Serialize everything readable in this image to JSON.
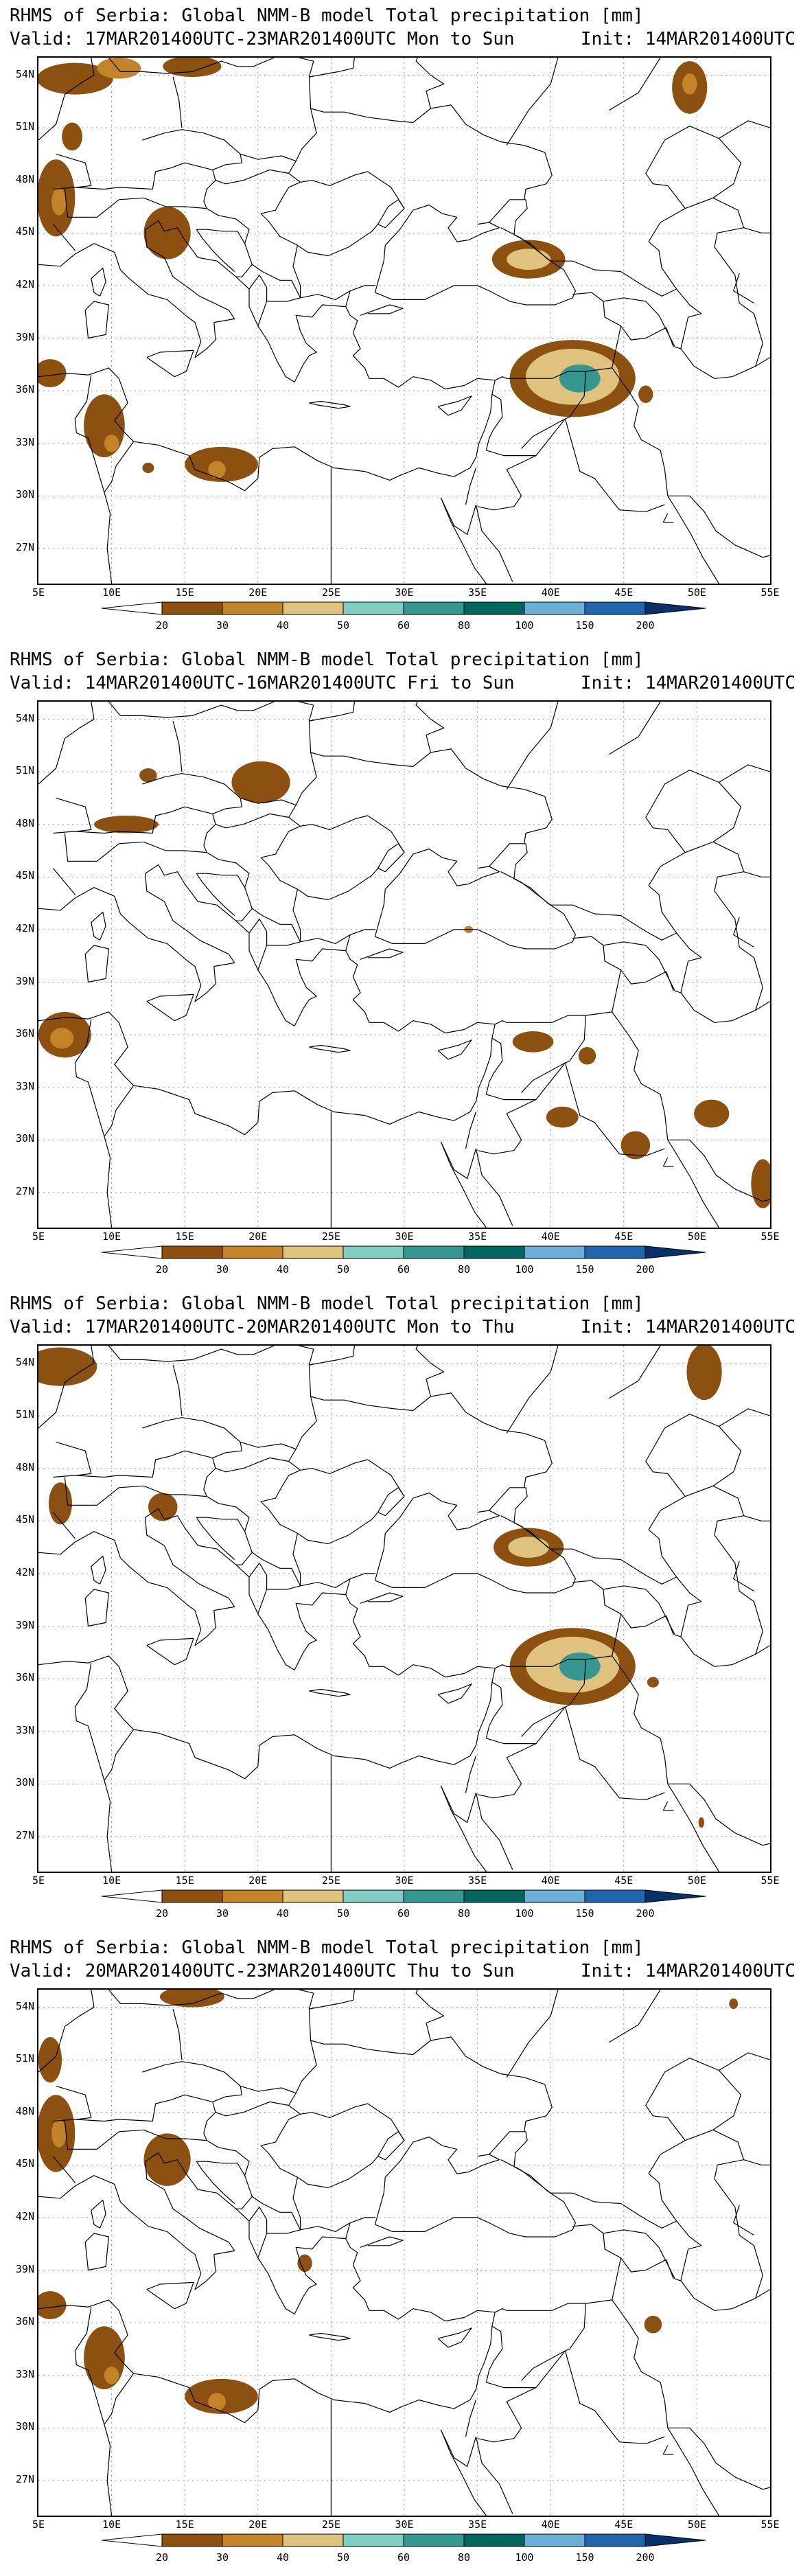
{
  "panels": [
    {
      "title": "RHMS of Serbia: Global NMM-B model Total precipitation [mm]",
      "valid": "Valid: 17MAR201400UTC-23MAR201400UTC Mon to Sun",
      "init": "Init: 14MAR201400UTC",
      "features": [
        {
          "lon": 7.5,
          "lat": 53.8,
          "rx": 2.6,
          "ry": 0.9,
          "level": 1
        },
        {
          "lon": 10.5,
          "lat": 54.4,
          "rx": 1.5,
          "ry": 0.6,
          "level": 2
        },
        {
          "lon": 15.5,
          "lat": 54.5,
          "rx": 2.0,
          "ry": 0.6,
          "level": 1
        },
        {
          "lon": 7.3,
          "lat": 50.5,
          "rx": 0.7,
          "ry": 0.8,
          "level": 1
        },
        {
          "lon": 6.2,
          "lat": 47.0,
          "rx": 1.3,
          "ry": 2.2,
          "level": 1
        },
        {
          "lon": 6.4,
          "lat": 46.8,
          "rx": 0.5,
          "ry": 0.8,
          "level": 2
        },
        {
          "lon": 13.8,
          "lat": 45.0,
          "rx": 1.6,
          "ry": 1.5,
          "level": 1
        },
        {
          "lon": 38.5,
          "lat": 43.5,
          "rx": 2.5,
          "ry": 1.1,
          "level": 1
        },
        {
          "lon": 38.5,
          "lat": 43.5,
          "rx": 1.5,
          "ry": 0.6,
          "level": 3
        },
        {
          "lon": 41.5,
          "lat": 36.7,
          "rx": 4.3,
          "ry": 2.2,
          "level": 1
        },
        {
          "lon": 41.5,
          "lat": 36.8,
          "rx": 3.2,
          "ry": 1.6,
          "level": 3
        },
        {
          "lon": 42.0,
          "lat": 36.7,
          "rx": 1.4,
          "ry": 0.8,
          "level": 5
        },
        {
          "lon": 46.5,
          "lat": 35.8,
          "rx": 0.5,
          "ry": 0.5,
          "level": 1
        },
        {
          "lon": 49.5,
          "lat": 53.3,
          "rx": 1.2,
          "ry": 1.5,
          "level": 1
        },
        {
          "lon": 49.5,
          "lat": 53.5,
          "rx": 0.5,
          "ry": 0.6,
          "level": 2
        },
        {
          "lon": 5.8,
          "lat": 37.0,
          "rx": 1.1,
          "ry": 0.8,
          "level": 1
        },
        {
          "lon": 9.5,
          "lat": 34.0,
          "rx": 1.4,
          "ry": 1.8,
          "level": 1
        },
        {
          "lon": 10.0,
          "lat": 33.0,
          "rx": 0.5,
          "ry": 0.5,
          "level": 2
        },
        {
          "lon": 17.5,
          "lat": 31.8,
          "rx": 2.5,
          "ry": 1.0,
          "level": 1
        },
        {
          "lon": 17.2,
          "lat": 31.5,
          "rx": 0.6,
          "ry": 0.5,
          "level": 2
        },
        {
          "lon": 12.5,
          "lat": 31.6,
          "rx": 0.4,
          "ry": 0.3,
          "level": 1
        }
      ]
    },
    {
      "title": "RHMS of Serbia: Global NMM-B model Total precipitation [mm]",
      "valid": "Valid: 14MAR201400UTC-16MAR201400UTC Fri to Sun",
      "init": "Init: 14MAR201400UTC",
      "features": [
        {
          "lon": 20.2,
          "lat": 50.4,
          "rx": 2.0,
          "ry": 1.2,
          "level": 1
        },
        {
          "lon": 12.5,
          "lat": 50.8,
          "rx": 0.6,
          "ry": 0.4,
          "level": 1
        },
        {
          "lon": 11.0,
          "lat": 48.0,
          "rx": 2.2,
          "ry": 0.5,
          "level": 1
        },
        {
          "lon": 6.8,
          "lat": 36.0,
          "rx": 1.8,
          "ry": 1.3,
          "level": 1
        },
        {
          "lon": 6.6,
          "lat": 35.8,
          "rx": 0.8,
          "ry": 0.6,
          "level": 2
        },
        {
          "lon": 38.8,
          "lat": 35.6,
          "rx": 1.4,
          "ry": 0.6,
          "level": 1
        },
        {
          "lon": 42.5,
          "lat": 34.8,
          "rx": 0.6,
          "ry": 0.5,
          "level": 1
        },
        {
          "lon": 40.8,
          "lat": 31.3,
          "rx": 1.1,
          "ry": 0.6,
          "level": 1
        },
        {
          "lon": 45.8,
          "lat": 29.7,
          "rx": 1.0,
          "ry": 0.8,
          "level": 1
        },
        {
          "lon": 51.0,
          "lat": 31.5,
          "rx": 1.2,
          "ry": 0.8,
          "level": 1
        },
        {
          "lon": 54.5,
          "lat": 27.5,
          "rx": 0.8,
          "ry": 1.4,
          "level": 1
        },
        {
          "lon": 34.4,
          "lat": 42.0,
          "rx": 0.3,
          "ry": 0.2,
          "level": 2
        }
      ]
    },
    {
      "title": "RHMS of Serbia: Global NMM-B model Total precipitation [mm]",
      "valid": "Valid: 17MAR201400UTC-20MAR201400UTC Mon to Thu",
      "init": "Init: 14MAR201400UTC",
      "features": [
        {
          "lon": 6.5,
          "lat": 53.8,
          "rx": 2.5,
          "ry": 1.1,
          "level": 1
        },
        {
          "lon": 6.5,
          "lat": 46.0,
          "rx": 0.8,
          "ry": 1.2,
          "level": 1
        },
        {
          "lon": 13.5,
          "lat": 45.8,
          "rx": 1.0,
          "ry": 0.8,
          "level": 1
        },
        {
          "lon": 38.5,
          "lat": 43.5,
          "rx": 2.4,
          "ry": 1.1,
          "level": 1
        },
        {
          "lon": 38.5,
          "lat": 43.5,
          "rx": 1.4,
          "ry": 0.6,
          "level": 3
        },
        {
          "lon": 41.5,
          "lat": 36.7,
          "rx": 4.3,
          "ry": 2.2,
          "level": 1
        },
        {
          "lon": 41.5,
          "lat": 36.8,
          "rx": 3.2,
          "ry": 1.6,
          "level": 3
        },
        {
          "lon": 42.0,
          "lat": 36.7,
          "rx": 1.4,
          "ry": 0.8,
          "level": 5
        },
        {
          "lon": 50.5,
          "lat": 53.5,
          "rx": 1.2,
          "ry": 1.6,
          "level": 1
        },
        {
          "lon": 47.0,
          "lat": 35.8,
          "rx": 0.4,
          "ry": 0.3,
          "level": 1
        },
        {
          "lon": 50.3,
          "lat": 27.8,
          "rx": 0.2,
          "ry": 0.3,
          "level": 1
        }
      ]
    },
    {
      "title": "RHMS of Serbia: Global NMM-B model Total precipitation [mm]",
      "valid": "Valid: 20MAR201400UTC-23MAR201400UTC Thu to Sun",
      "init": "Init: 14MAR201400UTC",
      "features": [
        {
          "lon": 15.5,
          "lat": 54.6,
          "rx": 2.2,
          "ry": 0.6,
          "level": 1
        },
        {
          "lon": 5.8,
          "lat": 51.0,
          "rx": 0.8,
          "ry": 1.3,
          "level": 1
        },
        {
          "lon": 6.2,
          "lat": 46.8,
          "rx": 1.3,
          "ry": 2.2,
          "level": 1
        },
        {
          "lon": 6.4,
          "lat": 46.8,
          "rx": 0.5,
          "ry": 0.8,
          "level": 2
        },
        {
          "lon": 13.8,
          "lat": 45.3,
          "rx": 1.6,
          "ry": 1.5,
          "level": 1
        },
        {
          "lon": 5.8,
          "lat": 37.0,
          "rx": 1.1,
          "ry": 0.8,
          "level": 1
        },
        {
          "lon": 9.5,
          "lat": 34.0,
          "rx": 1.4,
          "ry": 1.8,
          "level": 1
        },
        {
          "lon": 10.0,
          "lat": 33.0,
          "rx": 0.5,
          "ry": 0.5,
          "level": 2
        },
        {
          "lon": 17.5,
          "lat": 31.8,
          "rx": 2.5,
          "ry": 1.0,
          "level": 1
        },
        {
          "lon": 17.2,
          "lat": 31.5,
          "rx": 0.6,
          "ry": 0.5,
          "level": 2
        },
        {
          "lon": 23.2,
          "lat": 39.4,
          "rx": 0.5,
          "ry": 0.5,
          "level": 1
        },
        {
          "lon": 47.0,
          "lat": 35.9,
          "rx": 0.6,
          "ry": 0.5,
          "level": 1
        },
        {
          "lon": 52.5,
          "lat": 54.2,
          "rx": 0.3,
          "ry": 0.3,
          "level": 1
        }
      ]
    }
  ],
  "x_ticks": [
    "5E",
    "10E",
    "15E",
    "20E",
    "25E",
    "30E",
    "35E",
    "40E",
    "45E",
    "50E",
    "55E"
  ],
  "y_ticks": [
    "54N",
    "51N",
    "48N",
    "45N",
    "42N",
    "39N",
    "36N",
    "33N",
    "30N",
    "27N"
  ],
  "colorbar": {
    "labels": [
      "20",
      "30",
      "40",
      "50",
      "60",
      "80",
      "100",
      "150",
      "200"
    ],
    "colors": [
      "#ffffff",
      "#8c5110",
      "#c38328",
      "#dfc27d",
      "#80cdc1",
      "#35978f",
      "#01665e",
      "#6baed6",
      "#2166ac",
      "#08306b"
    ]
  },
  "chart_data": [
    {
      "type": "heatmap",
      "title": "RHMS of Serbia: Global NMM-B model Total precipitation [mm]",
      "subtitle": "Valid: 17MAR201400UTC-23MAR201400UTC Mon to Sun",
      "init": "Init: 14MAR201400UTC",
      "xlim": [
        5,
        55
      ],
      "ylim": [
        25,
        55
      ],
      "levels": [
        20,
        30,
        40,
        50,
        60,
        80,
        100,
        150,
        200
      ]
    },
    {
      "type": "heatmap",
      "title": "RHMS of Serbia: Global NMM-B model Total precipitation [mm]",
      "subtitle": "Valid: 14MAR201400UTC-16MAR201400UTC Fri to Sun",
      "init": "Init: 14MAR201400UTC",
      "xlim": [
        5,
        55
      ],
      "ylim": [
        25,
        55
      ],
      "levels": [
        20,
        30,
        40,
        50,
        60,
        80,
        100,
        150,
        200
      ]
    },
    {
      "type": "heatmap",
      "title": "RHMS of Serbia: Global NMM-B model Total precipitation [mm]",
      "subtitle": "Valid: 17MAR201400UTC-20MAR201400UTC Mon to Thu",
      "init": "Init: 14MAR201400UTC",
      "xlim": [
        5,
        55
      ],
      "ylim": [
        25,
        55
      ],
      "levels": [
        20,
        30,
        40,
        50,
        60,
        80,
        100,
        150,
        200
      ]
    },
    {
      "type": "heatmap",
      "title": "RHMS of Serbia: Global NMM-B model Total precipitation [mm]",
      "subtitle": "Valid: 20MAR201400UTC-23MAR201400UTC Thu to Sun",
      "init": "Init: 14MAR201400UTC",
      "xlim": [
        5,
        55
      ],
      "ylim": [
        25,
        55
      ],
      "levels": [
        20,
        30,
        40,
        50,
        60,
        80,
        100,
        150,
        200
      ]
    }
  ]
}
